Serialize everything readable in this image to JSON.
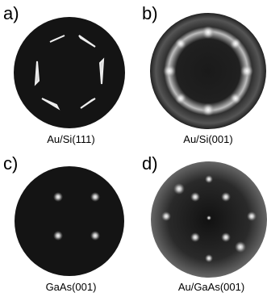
{
  "panels": [
    {
      "label": "a)",
      "caption": "Au/Si(111)"
    },
    {
      "label": "b)",
      "caption": "Au/Si(001)"
    },
    {
      "label": "c)",
      "caption": "GaAs(001)"
    },
    {
      "label": "d)",
      "caption": "Au/GaAs(001)"
    }
  ]
}
